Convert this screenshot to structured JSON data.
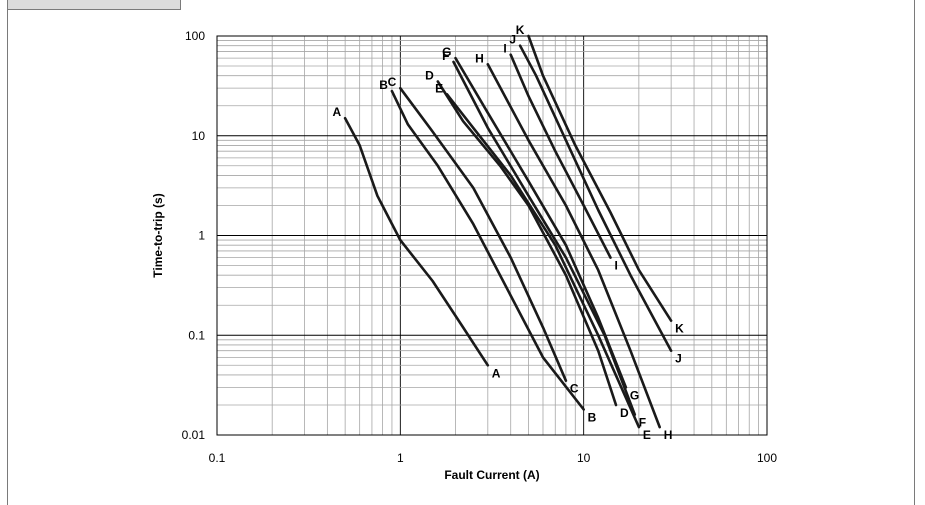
{
  "chart_data": {
    "type": "line",
    "xscale": "log",
    "yscale": "log",
    "xlim": [
      0.1,
      100
    ],
    "ylim": [
      0.01,
      100
    ],
    "xlabel": "Fault Current (A)",
    "ylabel": "Time-to-trip (s)",
    "x_ticks": [
      "0.1",
      "1",
      "10",
      "100"
    ],
    "y_ticks": [
      "0.01",
      "0.1",
      "1",
      "10",
      "100"
    ],
    "grid": "major and minor",
    "series": [
      {
        "name": "A",
        "x": [
          0.5,
          0.6,
          0.75,
          1.0,
          1.5,
          2.2,
          3.0
        ],
        "y": [
          15,
          8,
          2.5,
          0.9,
          0.35,
          0.12,
          0.05
        ]
      },
      {
        "name": "B",
        "x": [
          0.9,
          1.1,
          1.6,
          2.5,
          4.0,
          6.0,
          10.0
        ],
        "y": [
          28,
          13,
          5,
          1.3,
          0.25,
          0.06,
          0.018
        ]
      },
      {
        "name": "C",
        "x": [
          1.0,
          1.5,
          2.5,
          4.0,
          6.0,
          8.0
        ],
        "y": [
          30,
          11,
          3,
          0.6,
          0.12,
          0.035
        ]
      },
      {
        "name": "D",
        "x": [
          1.6,
          2.2,
          3.5,
          5.0,
          8.0,
          12.0,
          15.0
        ],
        "y": [
          35,
          14,
          5,
          2,
          0.4,
          0.07,
          0.02
        ]
      },
      {
        "name": "E",
        "x": [
          1.8,
          2.5,
          4.0,
          7.0,
          12.0,
          20.0
        ],
        "y": [
          26,
          12,
          4,
          0.8,
          0.1,
          0.012
        ]
      },
      {
        "name": "F",
        "x": [
          1.95,
          3.0,
          5.0,
          8.0,
          13.0,
          19.0
        ],
        "y": [
          55,
          12,
          2.5,
          0.6,
          0.1,
          0.016
        ]
      },
      {
        "name": "G",
        "x": [
          2.0,
          3.0,
          5.0,
          8.0,
          12.0,
          17.0
        ],
        "y": [
          60,
          17,
          3.5,
          0.8,
          0.15,
          0.03
        ]
      },
      {
        "name": "H",
        "x": [
          3.0,
          5.0,
          8.0,
          12.0,
          18.0,
          26.0
        ],
        "y": [
          52,
          9,
          2,
          0.45,
          0.07,
          0.012
        ]
      },
      {
        "name": "I",
        "x": [
          4.0,
          5.0,
          7.0,
          10.0,
          14.0
        ],
        "y": [
          65,
          25,
          7,
          2,
          0.6
        ]
      },
      {
        "name": "J",
        "x": [
          4.5,
          5.5,
          8.0,
          12.0,
          18.0,
          30.0
        ],
        "y": [
          80,
          40,
          9,
          1.8,
          0.4,
          0.07
        ]
      },
      {
        "name": "K",
        "x": [
          5.0,
          6.0,
          9.0,
          14.0,
          20.0,
          30.0
        ],
        "y": [
          100,
          40,
          8,
          1.7,
          0.45,
          0.14
        ]
      }
    ]
  }
}
